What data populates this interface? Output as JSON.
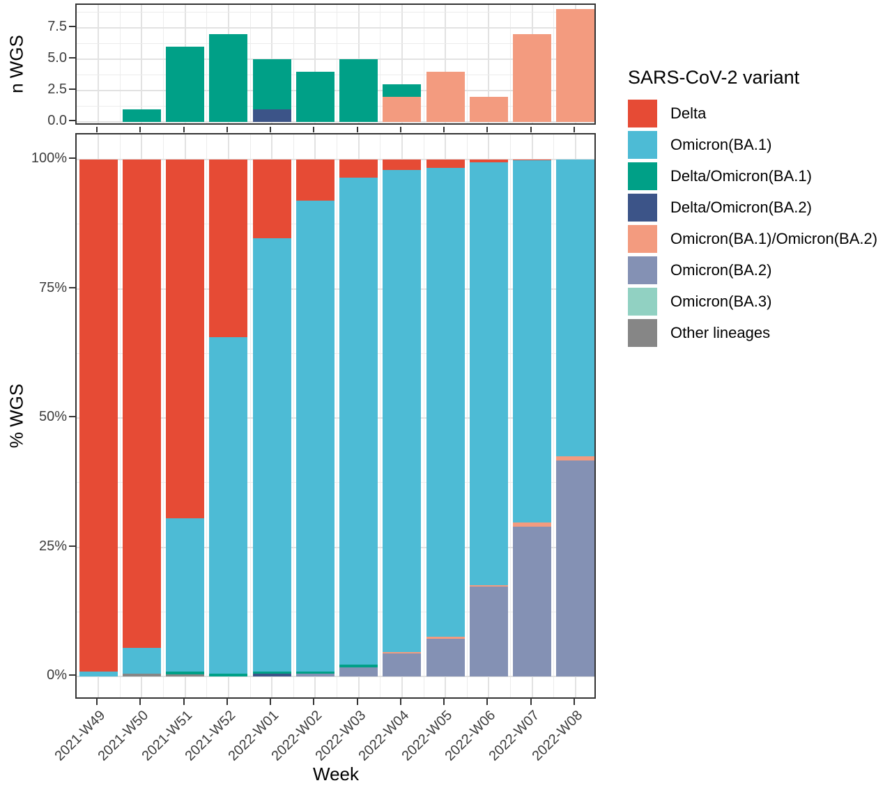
{
  "legend": {
    "title": "SARS-CoV-2 variant",
    "items": [
      {
        "label": "Delta",
        "color": "#E64B35"
      },
      {
        "label": "Omicron(BA.1)",
        "color": "#4DBBD5"
      },
      {
        "label": "Delta/Omicron(BA.1)",
        "color": "#00A087"
      },
      {
        "label": "Delta/Omicron(BA.2)",
        "color": "#3C5488"
      },
      {
        "label": "Omicron(BA.1)/Omicron(BA.2)",
        "color": "#F39B7F"
      },
      {
        "label": "Omicron(BA.2)",
        "color": "#8491B4"
      },
      {
        "label": "Omicron(BA.3)",
        "color": "#91D1C2"
      },
      {
        "label": "Other lineages",
        "color": "#868686"
      }
    ]
  },
  "x_axis": {
    "title": "Week",
    "categories": [
      "2021-W49",
      "2021-W50",
      "2021-W51",
      "2021-W52",
      "2022-W01",
      "2022-W02",
      "2022-W03",
      "2022-W04",
      "2022-W05",
      "2022-W06",
      "2022-W07",
      "2022-W08"
    ]
  },
  "chart_data": [
    {
      "type": "bar",
      "stacked": true,
      "title": "",
      "ylabel": "n WGS",
      "xlabel": "",
      "ylim": [
        0,
        9
      ],
      "grid": true,
      "yticks": [
        {
          "value": 0,
          "label": "0.0"
        },
        {
          "value": 2.5,
          "label": "2.5"
        },
        {
          "value": 5,
          "label": "5.0"
        },
        {
          "value": 7.5,
          "label": "7.5"
        }
      ],
      "categories": [
        "2021-W49",
        "2021-W50",
        "2021-W51",
        "2021-W52",
        "2022-W01",
        "2022-W02",
        "2022-W03",
        "2022-W04",
        "2022-W05",
        "2022-W06",
        "2022-W07",
        "2022-W08"
      ],
      "series": [
        {
          "name": "Omicron(BA.1)/Omicron(BA.2)",
          "color": "#F39B7F",
          "values": [
            0,
            0,
            0,
            0,
            0,
            0,
            0,
            2,
            4,
            2,
            7,
            9
          ]
        },
        {
          "name": "Delta/Omicron(BA.2)",
          "color": "#3C5488",
          "values": [
            0,
            0,
            0,
            0,
            1,
            0,
            0,
            0,
            0,
            0,
            0,
            0
          ]
        },
        {
          "name": "Delta/Omicron(BA.1)",
          "color": "#00A087",
          "values": [
            0,
            1,
            6,
            7,
            4,
            4,
            5,
            1,
            0,
            0,
            0,
            0
          ]
        }
      ]
    },
    {
      "type": "bar",
      "stacked": true,
      "percent": true,
      "title": "",
      "ylabel": "% WGS",
      "xlabel": "Week",
      "ylim": [
        0,
        100
      ],
      "grid": true,
      "yticks": [
        {
          "value": 0,
          "label": "0%"
        },
        {
          "value": 25,
          "label": "25%"
        },
        {
          "value": 50,
          "label": "50%"
        },
        {
          "value": 75,
          "label": "75%"
        },
        {
          "value": 100,
          "label": "100%"
        }
      ],
      "categories": [
        "2021-W49",
        "2021-W50",
        "2021-W51",
        "2021-W52",
        "2022-W01",
        "2022-W02",
        "2022-W03",
        "2022-W04",
        "2022-W05",
        "2022-W06",
        "2022-W07",
        "2022-W08"
      ],
      "series": [
        {
          "name": "Other lineages",
          "color": "#868686",
          "values": [
            0,
            0.6,
            0.4,
            0,
            0,
            0,
            0,
            0,
            0,
            0,
            0,
            0
          ]
        },
        {
          "name": "Omicron(BA.3)",
          "color": "#91D1C2",
          "values": [
            0,
            0,
            0,
            0,
            0,
            0,
            0,
            0,
            0,
            0,
            0,
            0
          ]
        },
        {
          "name": "Omicron(BA.2)",
          "color": "#8491B4",
          "values": [
            0,
            0,
            0,
            0,
            0,
            0.5,
            1.8,
            4.4,
            7.3,
            17.4,
            29.0,
            41.8
          ]
        },
        {
          "name": "Omicron(BA.1)/Omicron(BA.2)",
          "color": "#F39B7F",
          "values": [
            0,
            0,
            0,
            0,
            0,
            0,
            0,
            0.3,
            0.4,
            0.3,
            0.8,
            0.8
          ]
        },
        {
          "name": "Delta/Omicron(BA.2)",
          "color": "#3C5488",
          "values": [
            0,
            0,
            0,
            0,
            0.5,
            0,
            0,
            0,
            0,
            0,
            0,
            0
          ]
        },
        {
          "name": "Delta/Omicron(BA.1)",
          "color": "#00A087",
          "values": [
            0,
            0,
            0.5,
            0.6,
            0.5,
            0.5,
            0.5,
            0,
            0,
            0,
            0,
            0
          ]
        },
        {
          "name": "Omicron(BA.1)",
          "color": "#4DBBD5",
          "values": [
            1.0,
            4.9,
            29.7,
            65.0,
            83.8,
            91.0,
            94.2,
            93.3,
            90.7,
            81.8,
            70.0,
            57.4
          ]
        },
        {
          "name": "Delta",
          "color": "#E64B35",
          "values": [
            99.0,
            94.5,
            69.4,
            34.4,
            15.2,
            8.0,
            3.5,
            2.0,
            1.6,
            0.5,
            0.2,
            0
          ]
        }
      ]
    }
  ]
}
